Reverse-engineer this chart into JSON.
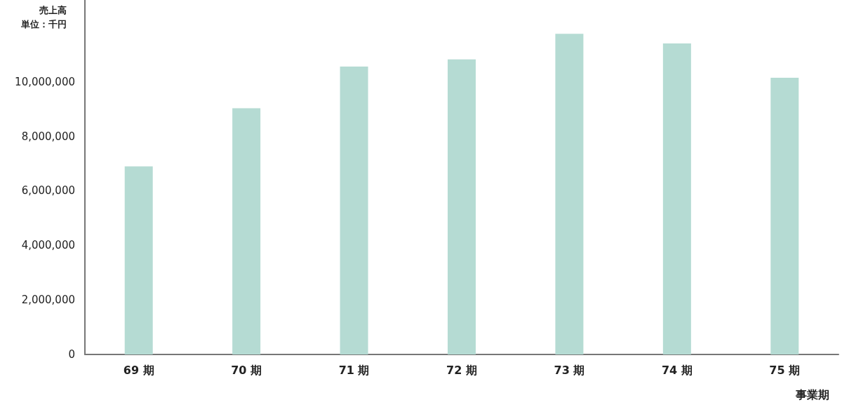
{
  "chart_data": {
    "type": "bar",
    "ylabel": "売上高",
    "annotations": [
      "単位：千円"
    ],
    "xlabel": "事業期",
    "categories": [
      "69 期",
      "70 期",
      "71 期",
      "72 期",
      "73 期",
      "74 期",
      "75 期"
    ],
    "values": [
      6900000,
      9030000,
      10560000,
      10820000,
      11760000,
      11410000,
      10150000
    ],
    "color": "#b5dbd3",
    "ylim": [
      0,
      13000000
    ],
    "yticks": [
      {
        "value": 0,
        "label": "0"
      },
      {
        "value": 2000000,
        "label": "2,000,000"
      },
      {
        "value": 4000000,
        "label": "4,000,000"
      },
      {
        "value": 6000000,
        "label": "6,000,000"
      },
      {
        "value": 8000000,
        "label": "8,000,000"
      },
      {
        "value": 10000000,
        "label": "10,000,000"
      }
    ],
    "grid": false
  }
}
